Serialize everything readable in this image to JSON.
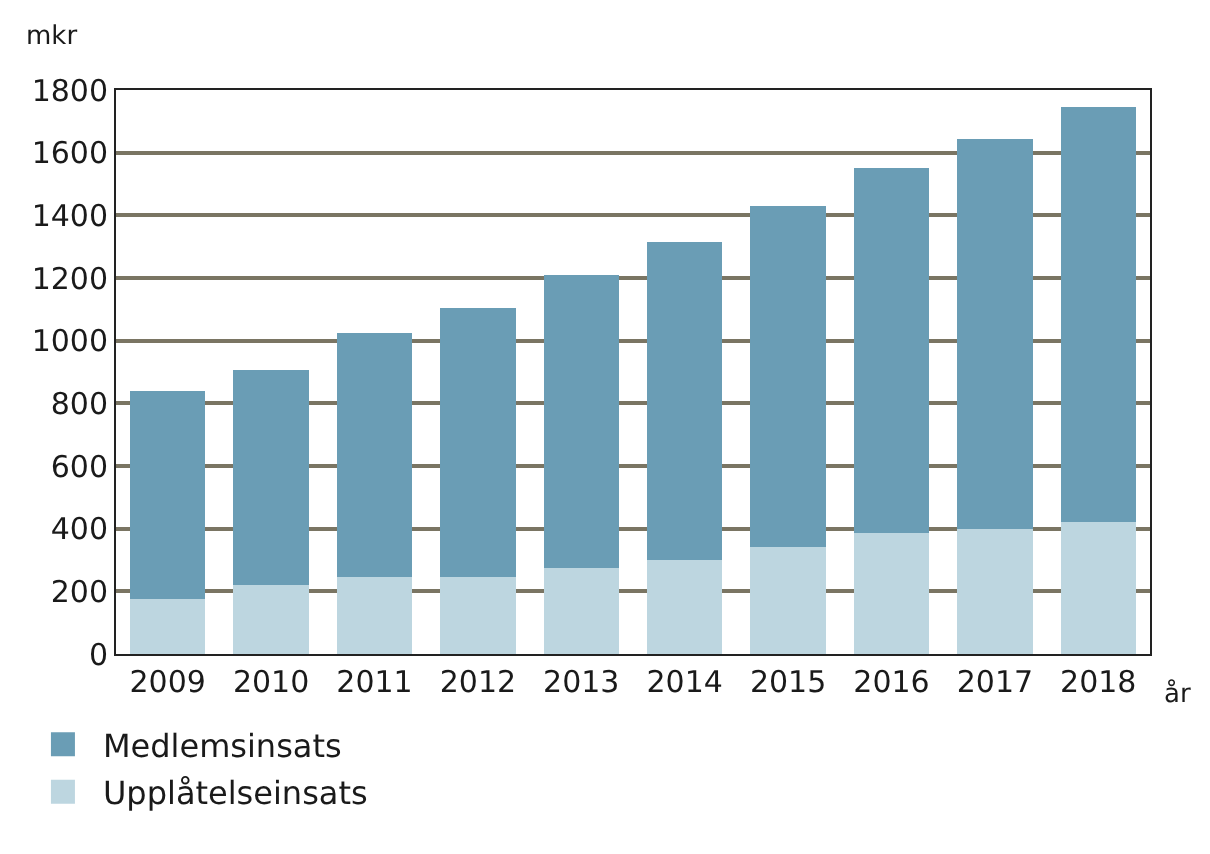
{
  "chart_data": {
    "type": "bar",
    "stacked": true,
    "ylabel": "mkr",
    "xlabel": "år",
    "categories": [
      "2009",
      "2010",
      "2011",
      "2012",
      "2013",
      "2014",
      "2015",
      "2016",
      "2017",
      "2018"
    ],
    "series": [
      {
        "name": "Upplåtelseinsats",
        "color": "#bdd6e0",
        "values": [
          175,
          220,
          245,
          245,
          275,
          300,
          340,
          385,
          400,
          420
        ]
      },
      {
        "name": "Medlemsinsats",
        "color": "#6a9db5",
        "values": [
          665,
          685,
          780,
          860,
          935,
          1015,
          1090,
          1165,
          1245,
          1325
        ]
      }
    ],
    "ylim": [
      0,
      1800
    ],
    "yticks": [
      0,
      200,
      400,
      600,
      800,
      1000,
      1200,
      1400,
      1600,
      1800
    ],
    "grid": "y",
    "legend": "bottom left"
  }
}
